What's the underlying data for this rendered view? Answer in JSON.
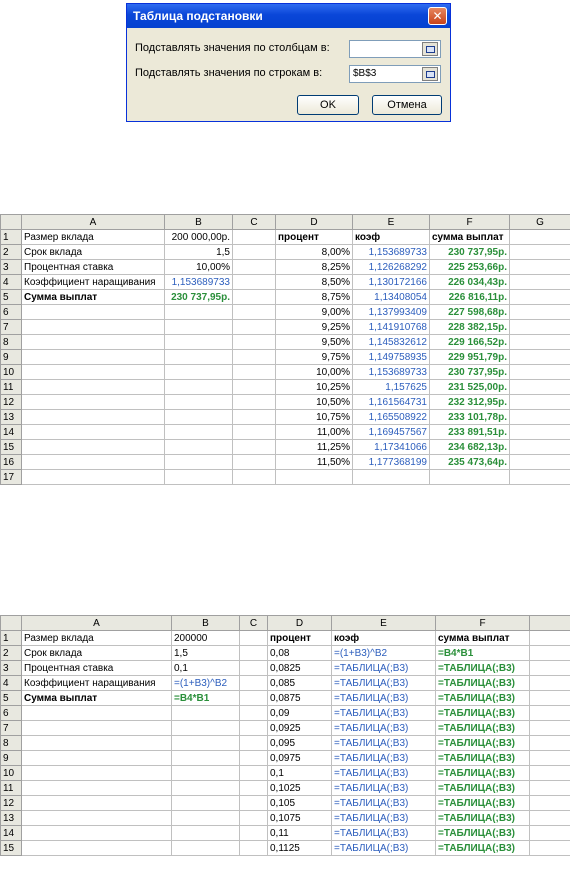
{
  "dialog": {
    "title": "Таблица подстановки",
    "col_label": "Подставлять значения по столбцам в:",
    "col_value": "",
    "row_label": "Подставлять значения по строкам в:",
    "row_value": "$B$3",
    "ok": "OK",
    "cancel": "Отмена"
  },
  "sheet1": {
    "columns": [
      "",
      "A",
      "B",
      "C",
      "D",
      "E",
      "F",
      "G"
    ],
    "rows": [
      [
        "1",
        "Размер вклада",
        "200 000,00р.",
        "",
        "процент",
        "коэф",
        "сумма выплат",
        ""
      ],
      [
        "2",
        "Срок вклада",
        "1,5",
        "",
        "8,00%",
        "1,153689733",
        "230 737,95р.",
        ""
      ],
      [
        "3",
        "Процентная ставка",
        "10,00%",
        "",
        "8,25%",
        "1,126268292",
        "225 253,66р.",
        ""
      ],
      [
        "4",
        "Коэффициент наращивания",
        "1,153689733",
        "",
        "8,50%",
        "1,130172166",
        "226 034,43р.",
        ""
      ],
      [
        "5",
        "Сумма выплат",
        "230 737,95р.",
        "",
        "8,75%",
        "1,13408054",
        "226 816,11р.",
        ""
      ],
      [
        "6",
        "",
        "",
        "",
        "9,00%",
        "1,137993409",
        "227 598,68р.",
        ""
      ],
      [
        "7",
        "",
        "",
        "",
        "9,25%",
        "1,141910768",
        "228 382,15р.",
        ""
      ],
      [
        "8",
        "",
        "",
        "",
        "9,50%",
        "1,145832612",
        "229 166,52р.",
        ""
      ],
      [
        "9",
        "",
        "",
        "",
        "9,75%",
        "1,149758935",
        "229 951,79р.",
        ""
      ],
      [
        "10",
        "",
        "",
        "",
        "10,00%",
        "1,153689733",
        "230 737,95р.",
        ""
      ],
      [
        "11",
        "",
        "",
        "",
        "10,25%",
        "1,157625",
        "231 525,00р.",
        ""
      ],
      [
        "12",
        "",
        "",
        "",
        "10,50%",
        "1,161564731",
        "232 312,95р.",
        ""
      ],
      [
        "13",
        "",
        "",
        "",
        "10,75%",
        "1,165508922",
        "233 101,78р.",
        ""
      ],
      [
        "14",
        "",
        "",
        "",
        "11,00%",
        "1,169457567",
        "233 891,51р.",
        ""
      ],
      [
        "15",
        "",
        "",
        "",
        "11,25%",
        "1,17341066",
        "234 682,13р.",
        ""
      ],
      [
        "16",
        "",
        "",
        "",
        "11,50%",
        "1,177368199",
        "235 473,64р.",
        ""
      ],
      [
        "17",
        "",
        "",
        "",
        "",
        "",
        "",
        ""
      ]
    ]
  },
  "sheet2": {
    "columns": [
      "",
      "A",
      "B",
      "C",
      "D",
      "E",
      "F",
      ""
    ],
    "rows": [
      [
        "1",
        "Размер вклада",
        "200000",
        "",
        "процент",
        "коэф",
        "сумма выплат",
        ""
      ],
      [
        "2",
        "Срок вклада",
        "1,5",
        "",
        "0,08",
        "=(1+B3)^B2",
        "=B4*B1",
        ""
      ],
      [
        "3",
        "Процентная ставка",
        "0,1",
        "",
        "0,0825",
        "=ТАБЛИЦА(;B3)",
        "=ТАБЛИЦА(;B3)",
        ""
      ],
      [
        "4",
        "Коэффициент наращивания",
        "=(1+B3)^B2",
        "",
        "0,085",
        "=ТАБЛИЦА(;B3)",
        "=ТАБЛИЦА(;B3)",
        ""
      ],
      [
        "5",
        "Сумма выплат",
        "=B4*B1",
        "",
        "0,0875",
        "=ТАБЛИЦА(;B3)",
        "=ТАБЛИЦА(;B3)",
        ""
      ],
      [
        "6",
        "",
        "",
        "",
        "0,09",
        "=ТАБЛИЦА(;B3)",
        "=ТАБЛИЦА(;B3)",
        ""
      ],
      [
        "7",
        "",
        "",
        "",
        "0,0925",
        "=ТАБЛИЦА(;B3)",
        "=ТАБЛИЦА(;B3)",
        ""
      ],
      [
        "8",
        "",
        "",
        "",
        "0,095",
        "=ТАБЛИЦА(;B3)",
        "=ТАБЛИЦА(;B3)",
        ""
      ],
      [
        "9",
        "",
        "",
        "",
        "0,0975",
        "=ТАБЛИЦА(;B3)",
        "=ТАБЛИЦА(;B3)",
        ""
      ],
      [
        "10",
        "",
        "",
        "",
        "0,1",
        "=ТАБЛИЦА(;B3)",
        "=ТАБЛИЦА(;B3)",
        ""
      ],
      [
        "11",
        "",
        "",
        "",
        "0,1025",
        "=ТАБЛИЦА(;B3)",
        "=ТАБЛИЦА(;B3)",
        ""
      ],
      [
        "12",
        "",
        "",
        "",
        "0,105",
        "=ТАБЛИЦА(;B3)",
        "=ТАБЛИЦА(;B3)",
        ""
      ],
      [
        "13",
        "",
        "",
        "",
        "0,1075",
        "=ТАБЛИЦА(;B3)",
        "=ТАБЛИЦА(;B3)",
        ""
      ],
      [
        "14",
        "",
        "",
        "",
        "0,11",
        "=ТАБЛИЦА(;B3)",
        "=ТАБЛИЦА(;B3)",
        ""
      ],
      [
        "15",
        "",
        "",
        "",
        "0,1125",
        "=ТАБЛИЦА(;B3)",
        "=ТАБЛИЦА(;B3)",
        ""
      ]
    ]
  },
  "colors": {
    "blue": "#2c5ebd",
    "green": "#2a8f3a"
  }
}
